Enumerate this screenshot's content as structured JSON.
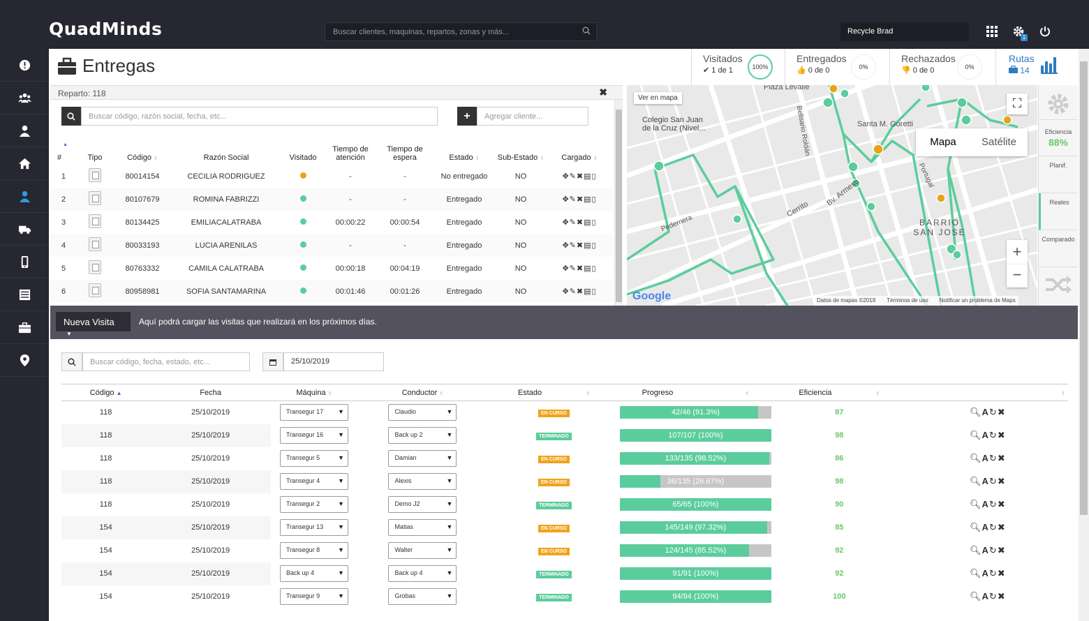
{
  "app": {
    "logo": "QuadMinds",
    "search_placeholder": "Buscar clientes, maquinas, repartos, zonas y más...",
    "user": "Recycle Brad",
    "badge_count": "1"
  },
  "sidebar": {
    "icons": [
      "alert-icon",
      "users-icon",
      "user-icon",
      "home-icon",
      "driver-icon",
      "truck-icon",
      "mobile-icon",
      "list-icon",
      "briefcase-icon",
      "map-pin-icon"
    ],
    "active": 4
  },
  "header": {
    "title": "Entregas",
    "visitados": {
      "label": "Visitados",
      "value": "1 de 1",
      "pct": "100%"
    },
    "entregados": {
      "label": "Entregados",
      "value": "0 de 0",
      "pct": "0%"
    },
    "rechazados": {
      "label": "Rechazados",
      "value": "0 de 0",
      "pct": "0%"
    },
    "rutas": {
      "label": "Rutas",
      "value": "14"
    }
  },
  "reparto": {
    "title": "Reparto: 118",
    "search_placeholder": "Buscar código, razón social, fecha, etc...",
    "add_placeholder": "Agregar cliente...",
    "columns": [
      "#",
      "Tipo",
      "Código",
      "Razón Social",
      "Visitado",
      "Tiempo de atención",
      "Tiempo de espera",
      "Estado",
      "Sub-Estado",
      "Cargado"
    ],
    "rows": [
      {
        "n": "1",
        "codigo": "80014154",
        "razon": "CECILIA RODRIGUEZ",
        "visitado": "orange",
        "atencion": "-",
        "espera": "-",
        "estado": "No entregado",
        "sub": "NO"
      },
      {
        "n": "2",
        "codigo": "80107679",
        "razon": "ROMINA FABRIZZI",
        "visitado": "green",
        "atencion": "-",
        "espera": "-",
        "estado": "Entregado",
        "sub": "NO"
      },
      {
        "n": "3",
        "codigo": "80134425",
        "razon": "EMILIACALATRABA",
        "visitado": "green",
        "atencion": "00:00:22",
        "espera": "00:00:54",
        "estado": "Entregado",
        "sub": "NO"
      },
      {
        "n": "4",
        "codigo": "80033193",
        "razon": "LUCIA ARENILAS",
        "visitado": "green",
        "atencion": "-",
        "espera": "-",
        "estado": "Entregado",
        "sub": "NO"
      },
      {
        "n": "5",
        "codigo": "80763332",
        "razon": "CAMILA CALATRABA",
        "visitado": "green",
        "atencion": "00:00:18",
        "espera": "00:04:19",
        "estado": "Entregado",
        "sub": "NO"
      },
      {
        "n": "6",
        "codigo": "80958981",
        "razon": "SOFIA SANTAMARINA",
        "visitado": "green",
        "atencion": "00:01:46",
        "espera": "00:01:26",
        "estado": "Entregado",
        "sub": "NO"
      }
    ]
  },
  "map": {
    "ver_en_mapa": "Ver en mapa",
    "tab_mapa": "Mapa",
    "tab_satelite": "Satélite",
    "footer_data": "Datos de mapas ©2019",
    "footer_terms": "Términos de uso",
    "footer_report": "Notificar un problema de Maps",
    "google": "Google",
    "place": "Colegio San Juan de la Cruz (Nivel...",
    "barrio": "BARRIO SAN JOSE",
    "labels": [
      "Plaza Levalle",
      "Santa M. Goretti",
      "Pedernera",
      "Cerrito",
      "Bv. Armesti",
      "Belisario Roldán",
      "Portugal",
      "Cerrito"
    ]
  },
  "rpanel": {
    "eficiencia_label": "Eficiencia",
    "eficiencia_value": "88%",
    "planif": "Planif.",
    "reales": "Reales",
    "comparado": "Comparado"
  },
  "bar": {
    "button": "Nueva Visita",
    "message": "Aquí podrá cargar las visitas que realizará en los próximos días."
  },
  "lower": {
    "search_placeholder": "Buscar código, fecha, estado, etc...",
    "date": "25/10/2019",
    "columns": [
      "Código",
      "Fecha",
      "Máquina",
      "Conductor",
      "Estado",
      "Progreso",
      "Eficiencia"
    ],
    "rows": [
      {
        "codigo": "118",
        "fecha": "25/10/2019",
        "maquina": "Transegur 17",
        "conductor": "Claudio",
        "estado": "EN CURSO",
        "progreso": "42/46 (91.3%)",
        "pct": 91.3,
        "eficiencia": "87"
      },
      {
        "codigo": "118",
        "fecha": "25/10/2019",
        "maquina": "Transegur 16",
        "conductor": "Back up 2",
        "estado": "TERMINADO",
        "progreso": "107/107 (100%)",
        "pct": 100,
        "eficiencia": "98"
      },
      {
        "codigo": "118",
        "fecha": "25/10/2019",
        "maquina": "Transegur 5",
        "conductor": "Damian",
        "estado": "EN CURSO",
        "progreso": "133/135 (98.52%)",
        "pct": 98.52,
        "eficiencia": "86"
      },
      {
        "codigo": "118",
        "fecha": "25/10/2019",
        "maquina": "Transegur 4",
        "conductor": "Alexis",
        "estado": "EN CURSO",
        "progreso": "36/135 (26.67%)",
        "pct": 26.67,
        "eficiencia": "98"
      },
      {
        "codigo": "118",
        "fecha": "25/10/2019",
        "maquina": "Transegur 2",
        "conductor": "Demo J2",
        "estado": "TERMINADO",
        "progreso": "65/65 (100%)",
        "pct": 100,
        "eficiencia": "90"
      },
      {
        "codigo": "154",
        "fecha": "25/10/2019",
        "maquina": "Transegur 13",
        "conductor": "Matias",
        "estado": "EN CURSO",
        "progreso": "145/149 (97.32%)",
        "pct": 97.32,
        "eficiencia": "85"
      },
      {
        "codigo": "154",
        "fecha": "25/10/2019",
        "maquina": "Transegur 8",
        "conductor": "Walter",
        "estado": "EN CURSO",
        "progreso": "124/145 (85.52%)",
        "pct": 85.52,
        "eficiencia": "92"
      },
      {
        "codigo": "154",
        "fecha": "25/10/2019",
        "maquina": "Back up 4",
        "conductor": "Back up 4",
        "estado": "TERMINADO",
        "progreso": "91/91 (100%)",
        "pct": 100,
        "eficiencia": "92"
      },
      {
        "codigo": "154",
        "fecha": "25/10/2019",
        "maquina": "Transegur 9",
        "conductor": "Grobas",
        "estado": "TERMINADO",
        "progreso": "94/94 (100%)",
        "pct": 100,
        "eficiencia": "100"
      }
    ]
  },
  "colors": {
    "green": "#5bcd9c",
    "orange": "#e8a417",
    "status_en_curso": "#f0a41a",
    "status_terminado": "#5bcd9c",
    "active_blue": "#2e9be0"
  }
}
